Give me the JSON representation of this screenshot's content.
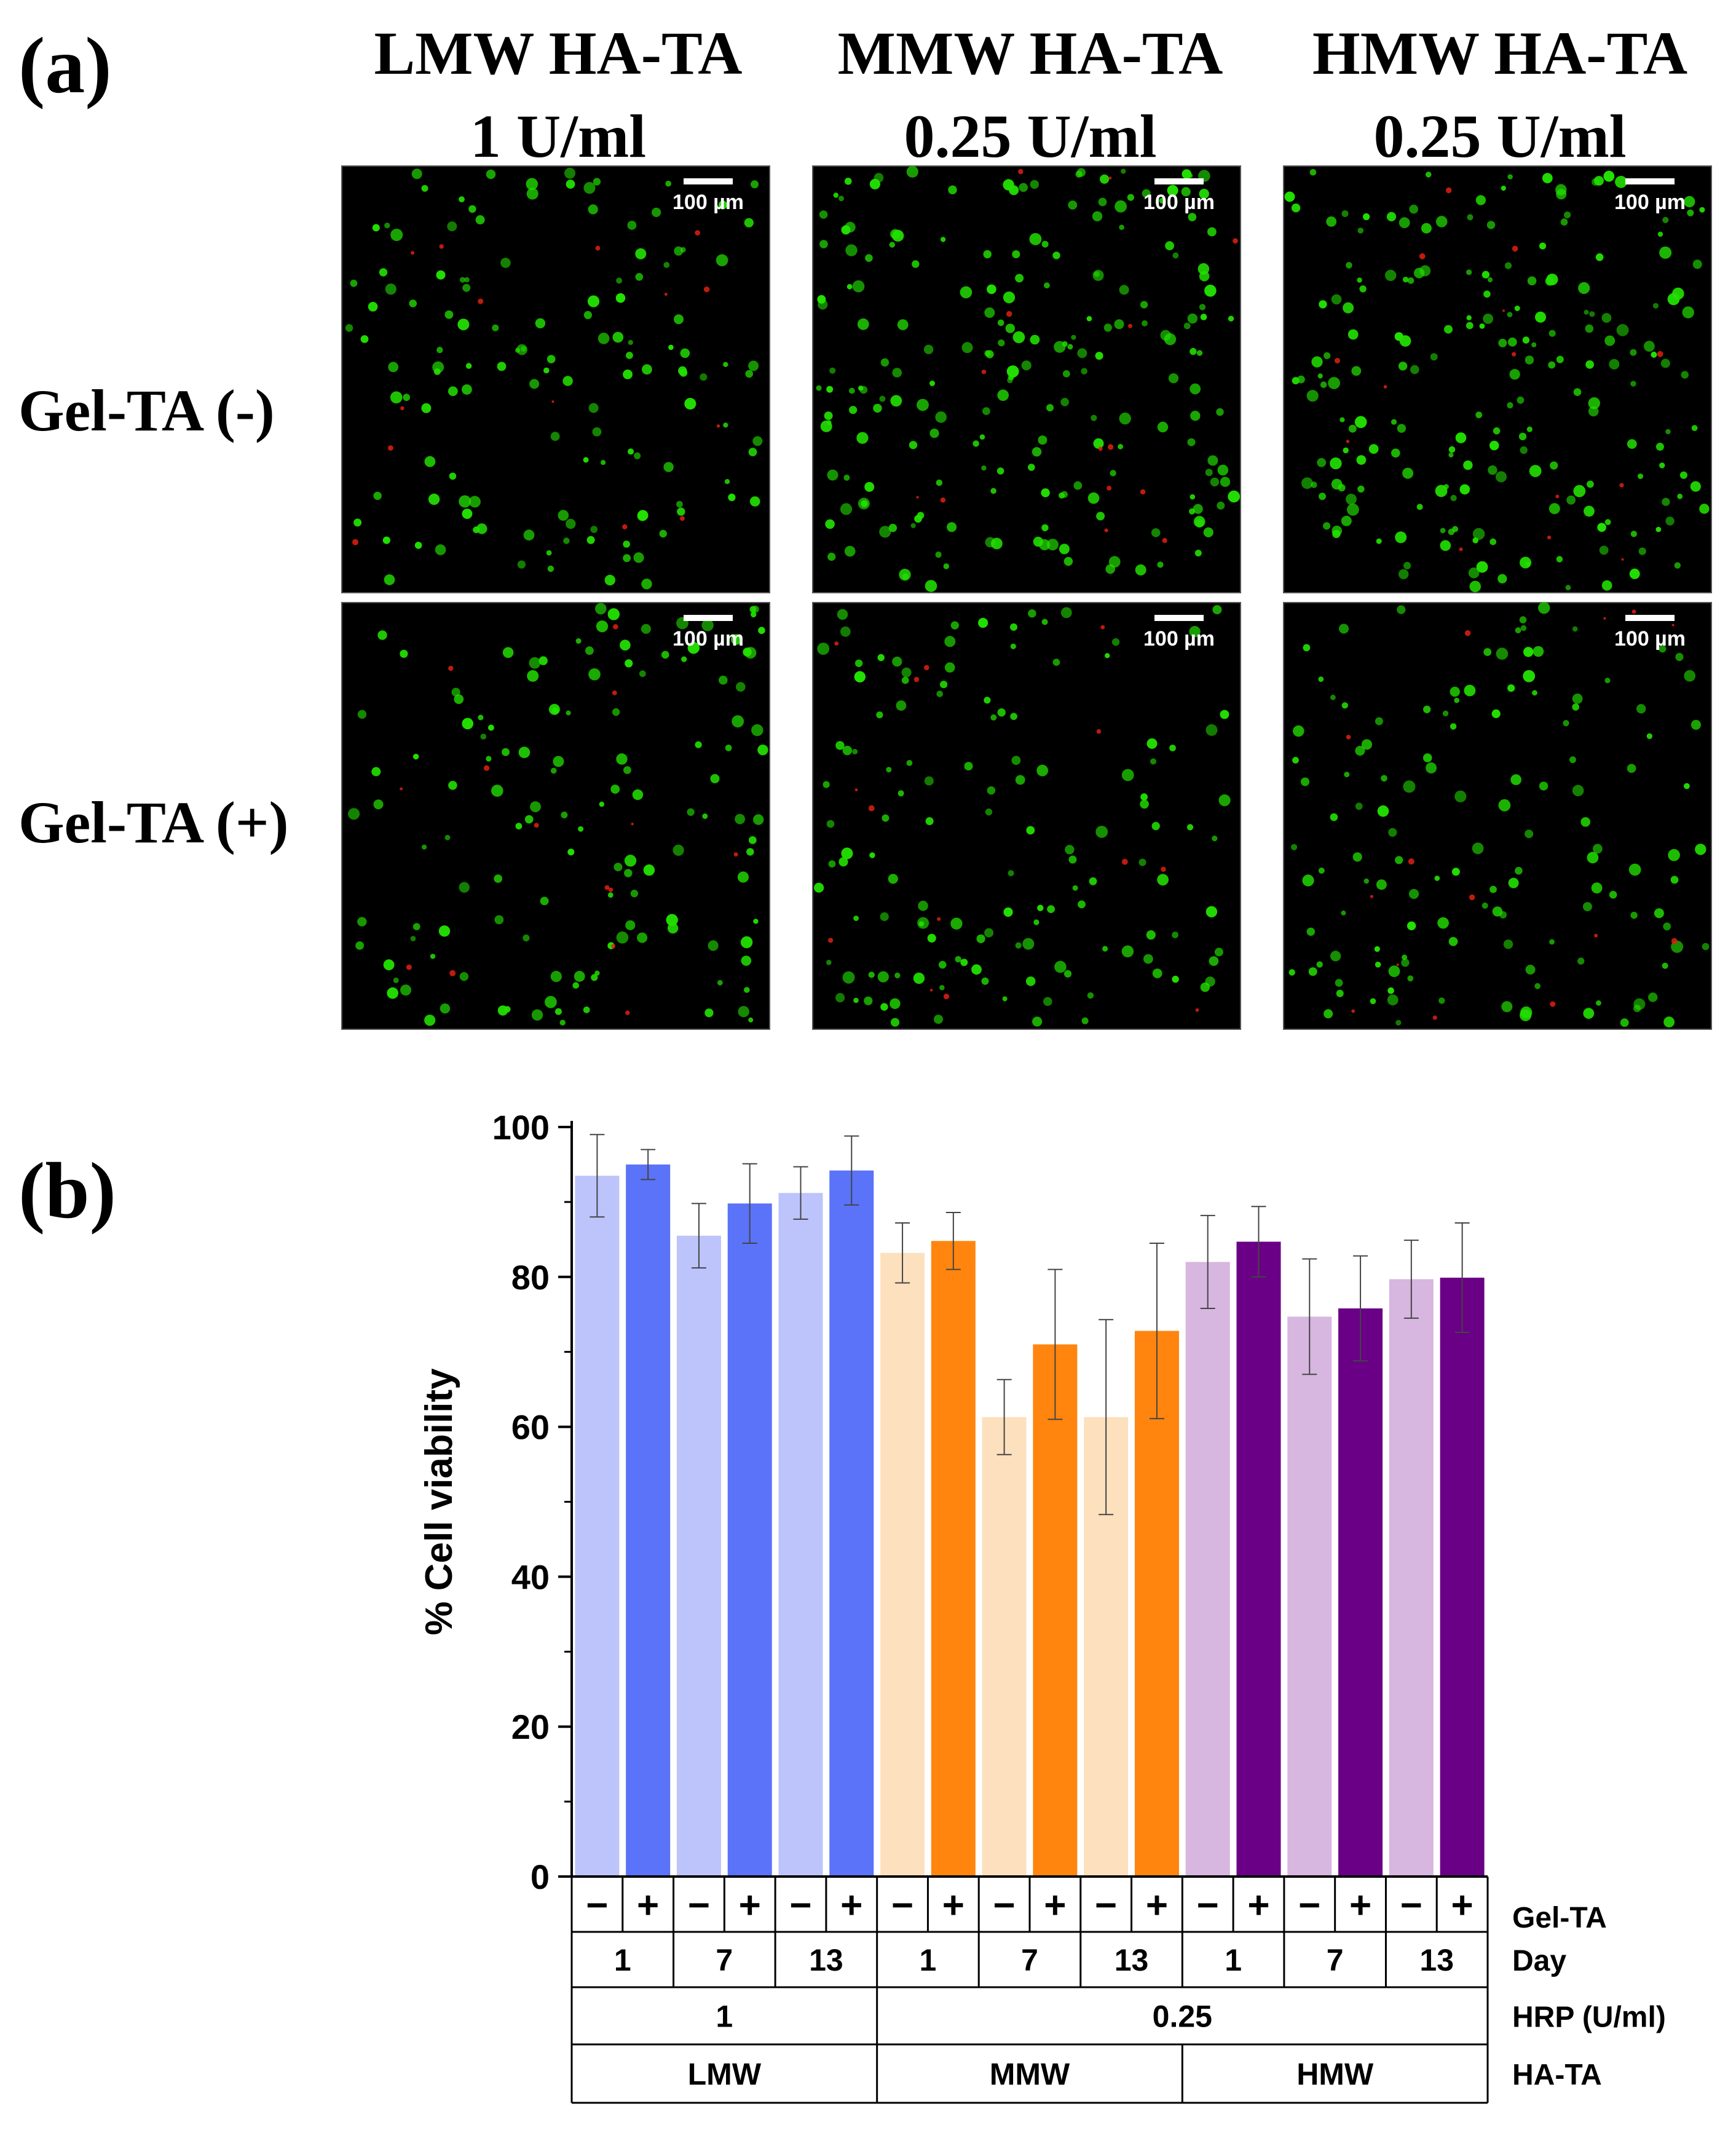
{
  "panel_a": {
    "label": "(a)",
    "columns": [
      {
        "line1": "LMW HA-TA",
        "line2": "1 U/ml"
      },
      {
        "line1": "MMW HA-TA",
        "line2": "0.25 U/ml"
      },
      {
        "line1": "HMW HA-TA",
        "line2": "0.25 U/ml"
      }
    ],
    "rows": [
      "Gel-TA (-)",
      "Gel-TA (+)"
    ],
    "scale_bar": "100 µm",
    "colors": {
      "live": "#22e000",
      "dead": "#e02010",
      "background": "#000000"
    }
  },
  "panel_b": {
    "label": "(b)"
  },
  "chart_data": {
    "type": "bar",
    "ylabel": "% Cell viability",
    "ylim": [
      0,
      100
    ],
    "yticks": [
      0,
      20,
      40,
      60,
      80,
      100
    ],
    "grid": false,
    "values": [
      93.5,
      95,
      85.5,
      89.8,
      91.2,
      94.2,
      83.2,
      84.8,
      61.3,
      71,
      61.3,
      72.8,
      82,
      84.7,
      74.7,
      75.8,
      79.7,
      79.9
    ],
    "errors": [
      5.5,
      2,
      4.3,
      5.3,
      3.5,
      4.6,
      4,
      3.8,
      5,
      10,
      13,
      11.7,
      6.2,
      4.7,
      7.7,
      7,
      5.2,
      7.3
    ],
    "colors": [
      "#bcc4fb",
      "#5a73f8",
      "#bcc4fb",
      "#5a73f8",
      "#bcc4fb",
      "#5a73f8",
      "#fde0bd",
      "#ff850f",
      "#fde0bd",
      "#ff850f",
      "#fde0bd",
      "#ff850f",
      "#d7b6e0",
      "#6a0085",
      "#d7b6e0",
      "#6a0085",
      "#d7b6e0",
      "#6a0085"
    ],
    "category_rows": [
      {
        "name": "Gel-TA",
        "labels": [
          "−",
          "+",
          "−",
          "+",
          "−",
          "+",
          "−",
          "+",
          "−",
          "+",
          "−",
          "+",
          "−",
          "+",
          "−",
          "+",
          "−",
          "+"
        ],
        "spans": [
          1,
          1,
          1,
          1,
          1,
          1,
          1,
          1,
          1,
          1,
          1,
          1,
          1,
          1,
          1,
          1,
          1,
          1
        ]
      },
      {
        "name": "Day",
        "labels": [
          "1",
          "7",
          "13",
          "1",
          "7",
          "13",
          "1",
          "7",
          "13"
        ],
        "spans": [
          2,
          2,
          2,
          2,
          2,
          2,
          2,
          2,
          2
        ]
      },
      {
        "name": "HRP (U/ml)",
        "labels": [
          "1",
          "0.25"
        ],
        "spans": [
          6,
          12
        ]
      },
      {
        "name": "HA-TA",
        "labels": [
          "LMW",
          "MMW",
          "HMW"
        ],
        "spans": [
          6,
          6,
          6
        ]
      }
    ]
  }
}
